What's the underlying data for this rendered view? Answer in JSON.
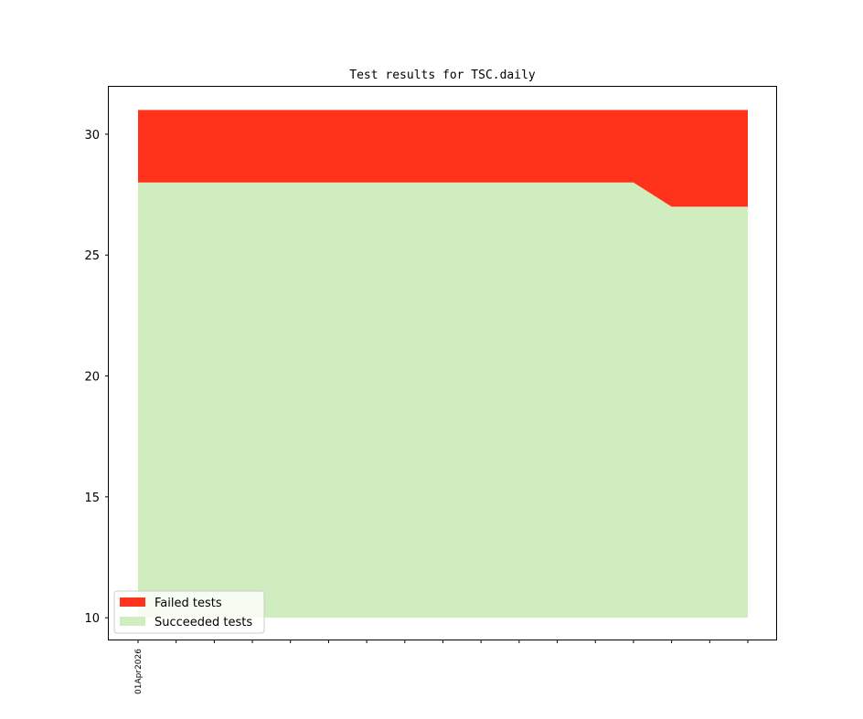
{
  "chart_data": {
    "type": "area",
    "title": "Test results for TSC.daily",
    "xlabel": "",
    "ylabel": "",
    "ylim": [
      9.1,
      31.96
    ],
    "yticks": [
      10,
      15,
      20,
      25,
      30
    ],
    "x": [
      0,
      1,
      2,
      3,
      4,
      5,
      6,
      7,
      8,
      9,
      10,
      11,
      12,
      13,
      14,
      15,
      16
    ],
    "xtick_labels": [
      "01Apr2026",
      "",
      "",
      "",
      "",
      "",
      "",
      "",
      "",
      "",
      "",
      "",
      "",
      "",
      "",
      "",
      ""
    ],
    "baseline": 10,
    "series": [
      {
        "name": "Succeeded tests",
        "color": "#cfedbf",
        "values": [
          28,
          28,
          28,
          28,
          28,
          28,
          28,
          28,
          28,
          28,
          28,
          28,
          28,
          28,
          27,
          27,
          27
        ]
      },
      {
        "name": "Failed tests",
        "color": "#ff331c",
        "values": [
          3,
          3,
          3,
          3,
          3,
          3,
          3,
          3,
          3,
          3,
          3,
          3,
          3,
          3,
          4,
          4,
          4
        ]
      }
    ],
    "legend_position": "lower-left",
    "legend_order": [
      "Failed tests",
      "Succeeded tests"
    ],
    "grid": false
  }
}
